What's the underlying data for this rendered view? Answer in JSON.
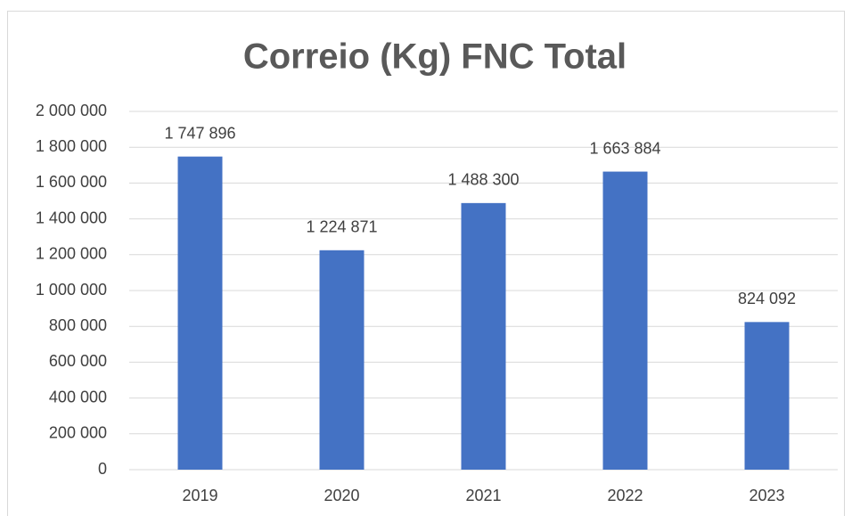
{
  "chart_data": {
    "type": "bar",
    "title": "Correio (Kg) FNC Total",
    "categories": [
      "2019",
      "2020",
      "2021",
      "2022",
      "2023"
    ],
    "values": [
      1747896,
      1224871,
      1488300,
      1663884,
      824092
    ],
    "value_labels": [
      "1 747 896",
      "1 224 871",
      "1 488 300",
      "1 663 884",
      "824 092"
    ],
    "color": "#4472c4",
    "ylim": [
      0,
      2000000
    ],
    "yticks": [
      0,
      {
        "value": 200000,
        "label": "200 000"
      },
      {
        "value": 400000,
        "label": "400 000"
      },
      {
        "value": 600000,
        "label": "600 000"
      },
      {
        "value": 800000,
        "label": "800 000"
      },
      {
        "value": 1000000,
        "label": "1 000 000"
      },
      {
        "value": 1200000,
        "label": "1 200 000"
      },
      {
        "value": 1400000,
        "label": "1 400 000"
      },
      {
        "value": 1600000,
        "label": "1 600 000"
      },
      {
        "value": 1800000,
        "label": "1 800 000"
      },
      {
        "value": 2000000,
        "label": "2 000 000"
      }
    ],
    "grid": true
  }
}
